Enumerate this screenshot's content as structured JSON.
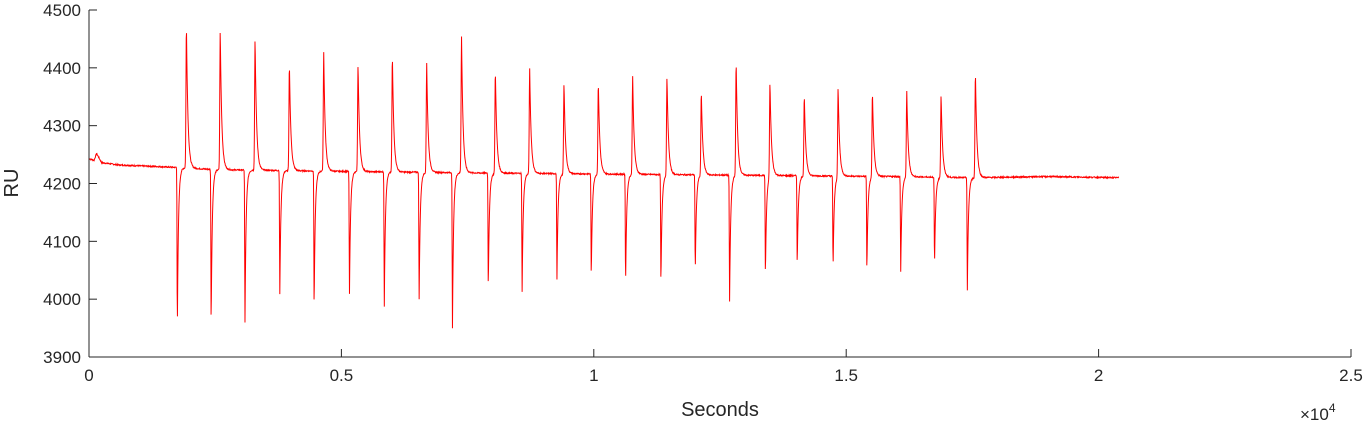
{
  "chart_data": {
    "type": "line",
    "title": "",
    "xlabel": "Seconds",
    "ylabel": "RU",
    "xlim": [
      0,
      25000
    ],
    "ylim": [
      3900,
      4500
    ],
    "x_exponent_label": {
      "times": "×10",
      "power": "4"
    },
    "x_ticks": [
      0,
      5000,
      10000,
      15000,
      20000,
      25000
    ],
    "x_tick_labels": [
      "0",
      "0.5",
      "1",
      "1.5",
      "2",
      "2.5"
    ],
    "y_ticks": [
      3900,
      4000,
      4100,
      4200,
      4300,
      4400,
      4500
    ],
    "y_tick_labels": [
      "3900",
      "4000",
      "4100",
      "4200",
      "4300",
      "4400",
      "4500"
    ],
    "grid": false,
    "line_color": "#ff0000",
    "series": [
      {
        "x_start": 0,
        "x_end": 20400,
        "baseline_points": [
          [
            0,
            4243
          ],
          [
            100,
            4240
          ],
          [
            150,
            4252
          ],
          [
            250,
            4236
          ],
          [
            600,
            4232
          ],
          [
            1700,
            4228
          ],
          [
            2500,
            4224
          ],
          [
            5000,
            4221
          ],
          [
            8000,
            4218
          ],
          [
            12000,
            4215
          ],
          [
            16000,
            4212
          ],
          [
            17500,
            4210
          ],
          [
            19000,
            4212
          ],
          [
            20400,
            4210
          ]
        ],
        "negative_spikes": [
          [
            1750,
            3946
          ],
          [
            2420,
            3957
          ],
          [
            3090,
            3959
          ],
          [
            3780,
            4009
          ],
          [
            4460,
            3985
          ],
          [
            5160,
            4008
          ],
          [
            5850,
            3987
          ],
          [
            6540,
            3999
          ],
          [
            7200,
            3949
          ],
          [
            7910,
            4018
          ],
          [
            8580,
            4012
          ],
          [
            9270,
            4034
          ],
          [
            9950,
            4037
          ],
          [
            10630,
            4024
          ],
          [
            11330,
            4026
          ],
          [
            12010,
            4045
          ],
          [
            12690,
            3995
          ],
          [
            13400,
            4040
          ],
          [
            14030,
            4058
          ],
          [
            14740,
            4052
          ],
          [
            15410,
            4048
          ],
          [
            16080,
            4047
          ],
          [
            16750,
            4056
          ],
          [
            17400,
            4015
          ]
        ],
        "positive_spikes": [
          [
            1930,
            4476
          ],
          [
            2600,
            4466
          ],
          [
            3290,
            4452
          ],
          [
            3970,
            4408
          ],
          [
            4650,
            4428
          ],
          [
            5330,
            4407
          ],
          [
            6010,
            4423
          ],
          [
            6690,
            4409
          ],
          [
            7380,
            4455
          ],
          [
            8050,
            4397
          ],
          [
            8730,
            4398
          ],
          [
            9410,
            4374
          ],
          [
            10090,
            4376
          ],
          [
            10770,
            4387
          ],
          [
            11450,
            4387
          ],
          [
            12130,
            4361
          ],
          [
            12820,
            4413
          ],
          [
            13490,
            4379
          ],
          [
            14170,
            4354
          ],
          [
            14840,
            4368
          ],
          [
            15520,
            4361
          ],
          [
            16200,
            4360
          ],
          [
            16880,
            4355
          ],
          [
            17560,
            4394
          ]
        ]
      }
    ]
  }
}
